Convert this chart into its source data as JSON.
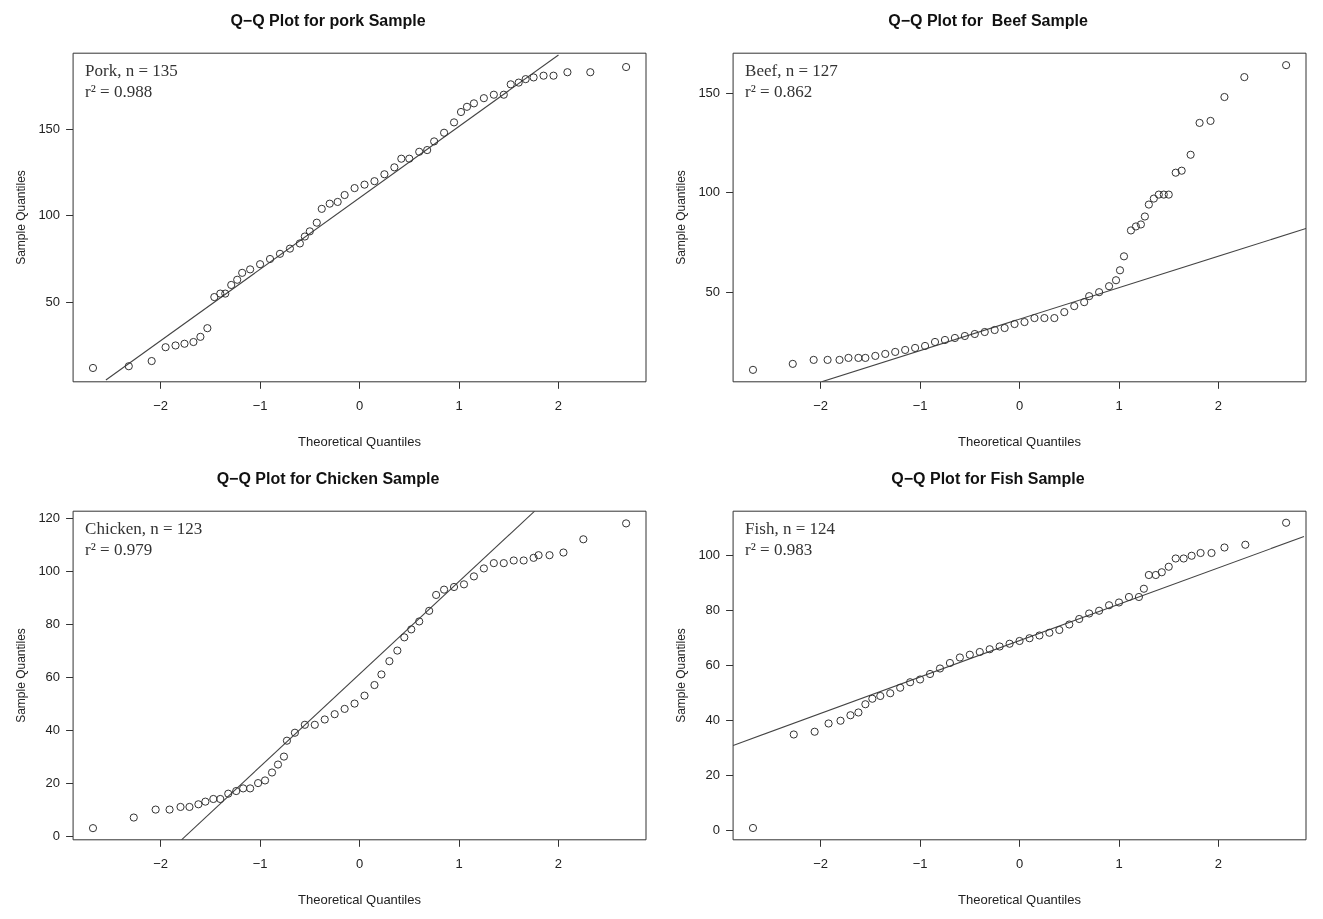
{
  "chart_data": [
    {
      "type": "scatter",
      "title": "Q−Q Plot for pork Sample",
      "xlabel": "Theoretical Quantiles",
      "ylabel": "Sample Quantiles",
      "xlim": [
        -2.88,
        2.88
      ],
      "ylim": [
        4,
        194
      ],
      "xticks": [
        -2,
        -1,
        0,
        1,
        2
      ],
      "yticks": [
        50,
        100,
        150
      ],
      "annotations": [
        "Pork, n = 135",
        "r² = 0.988"
      ],
      "series": [
        {
          "marker": "circle",
          "color": "#333333",
          "x": [
            -2.68,
            -2.32,
            -2.09,
            -1.95,
            -1.85,
            -1.76,
            -1.67,
            -1.6,
            -1.53,
            -1.46,
            -1.4,
            -1.35,
            -1.29,
            -1.23,
            -1.18,
            -1.1,
            -1.0,
            -0.9,
            -0.8,
            -0.7,
            -0.6,
            -0.55,
            -0.5,
            -0.43,
            -0.38,
            -0.3,
            -0.22,
            -0.15,
            -0.05,
            0.05,
            0.15,
            0.25,
            0.35,
            0.42,
            0.5,
            0.6,
            0.68,
            0.75,
            0.85,
            0.95,
            1.02,
            1.08,
            1.15,
            1.25,
            1.35,
            1.45,
            1.52,
            1.6,
            1.67,
            1.75,
            1.85,
            1.95,
            2.09,
            2.32,
            2.68
          ],
          "values": [
            12,
            13,
            16,
            24,
            25,
            26,
            27,
            30,
            35,
            53,
            55,
            55,
            60,
            63,
            67,
            69,
            72,
            75,
            78,
            81,
            84,
            88,
            91,
            96,
            104,
            107,
            108,
            112,
            116,
            118,
            120,
            124,
            128,
            133,
            133,
            137,
            138,
            143,
            148,
            154,
            160,
            163,
            165,
            168,
            170,
            170,
            176,
            177,
            179,
            180,
            181,
            181,
            183,
            183,
            186
          ]
        },
        {
          "type": "line",
          "marker": "none",
          "color": "#444444",
          "x": [
            -2.55,
            2.0
          ],
          "values": [
            5,
            193
          ]
        }
      ]
    },
    {
      "type": "scatter",
      "title": "Q−Q Plot for  Beef Sample",
      "xlabel": "Theoretical Quantiles",
      "ylabel": "Sample Quantiles",
      "xlim": [
        -2.88,
        2.88
      ],
      "ylim": [
        5,
        170
      ],
      "xticks": [
        -2,
        -1,
        0,
        1,
        2
      ],
      "yticks": [
        50,
        100,
        150
      ],
      "annotations": [
        "Beef, n = 127",
        "r² = 0.862"
      ],
      "series": [
        {
          "marker": "circle",
          "color": "#333333",
          "x": [
            -2.68,
            -2.28,
            -2.07,
            -1.93,
            -1.81,
            -1.72,
            -1.62,
            -1.55,
            -1.45,
            -1.35,
            -1.25,
            -1.15,
            -1.05,
            -0.95,
            -0.85,
            -0.75,
            -0.65,
            -0.55,
            -0.45,
            -0.35,
            -0.25,
            -0.15,
            -0.05,
            0.05,
            0.15,
            0.25,
            0.35,
            0.45,
            0.55,
            0.65,
            0.7,
            0.8,
            0.9,
            0.97,
            1.01,
            1.05,
            1.12,
            1.17,
            1.22,
            1.26,
            1.3,
            1.35,
            1.4,
            1.45,
            1.5,
            1.57,
            1.63,
            1.72,
            1.81,
            1.92,
            2.06,
            2.26,
            2.68
          ],
          "values": [
            11,
            14,
            16,
            16,
            16,
            17,
            17,
            17,
            18,
            19,
            20,
            21,
            22,
            23,
            25,
            26,
            27,
            28,
            29,
            30,
            31,
            32,
            34,
            35,
            37,
            37,
            37,
            40,
            43,
            45,
            48,
            50,
            53,
            56,
            61,
            68,
            81,
            83,
            84,
            88,
            94,
            97,
            99,
            99,
            99,
            110,
            111,
            119,
            135,
            136,
            148,
            158,
            164
          ]
        },
        {
          "type": "line",
          "marker": "none",
          "color": "#444444",
          "x": [
            -1.99,
            2.88
          ],
          "values": [
            5,
            82
          ]
        }
      ]
    },
    {
      "type": "scatter",
      "title": "Q−Q Plot for Chicken Sample",
      "xlabel": "Theoretical Quantiles",
      "ylabel": "Sample Quantiles",
      "xlim": [
        -2.88,
        2.88
      ],
      "ylim": [
        -1.4,
        122.6
      ],
      "xticks": [
        -2,
        -1,
        0,
        1,
        2
      ],
      "yticks": [
        0,
        20,
        40,
        60,
        80,
        100,
        120
      ],
      "annotations": [
        "Chicken, n = 123",
        "r² = 0.979"
      ],
      "series": [
        {
          "marker": "circle",
          "color": "#333333",
          "x": [
            -2.68,
            -2.27,
            -2.05,
            -1.91,
            -1.8,
            -1.71,
            -1.62,
            -1.55,
            -1.47,
            -1.4,
            -1.32,
            -1.24,
            -1.17,
            -1.1,
            -1.02,
            -0.95,
            -0.88,
            -0.82,
            -0.76,
            -0.73,
            -0.65,
            -0.55,
            -0.45,
            -0.35,
            -0.25,
            -0.15,
            -0.05,
            0.05,
            0.15,
            0.22,
            0.3,
            0.38,
            0.45,
            0.52,
            0.6,
            0.7,
            0.77,
            0.85,
            0.95,
            1.05,
            1.15,
            1.25,
            1.35,
            1.45,
            1.55,
            1.65,
            1.75,
            1.8,
            1.91,
            2.05,
            2.25,
            2.68
          ],
          "values": [
            3,
            7,
            10,
            10,
            11,
            11,
            12,
            13,
            14,
            14,
            16,
            17,
            18,
            18,
            20,
            21,
            24,
            27,
            30,
            36,
            39,
            42,
            42,
            44,
            46,
            48,
            50,
            53,
            57,
            61,
            66,
            70,
            75,
            78,
            81,
            85,
            91,
            93,
            94,
            95,
            98,
            101,
            103,
            103,
            104,
            104,
            105,
            106,
            106,
            107,
            112,
            118
          ]
        },
        {
          "type": "line",
          "marker": "none",
          "color": "#444444",
          "x": [
            -1.79,
            1.76
          ],
          "values": [
            -1.4,
            122.6
          ]
        }
      ]
    },
    {
      "type": "scatter",
      "title": "Q−Q Plot for Fish Sample",
      "xlabel": "Theoretical Quantiles",
      "ylabel": "Sample Quantiles",
      "xlim": [
        -2.88,
        2.88
      ],
      "ylim": [
        -3.3,
        116.2
      ],
      "xticks": [
        -2,
        -1,
        0,
        1,
        2
      ],
      "yticks": [
        0,
        20,
        40,
        60,
        80,
        100
      ],
      "annotations": [
        "Fish, n = 124",
        "r² = 0.983"
      ],
      "series": [
        {
          "marker": "circle",
          "color": "#333333",
          "x": [
            -2.68,
            -2.27,
            -2.06,
            -1.92,
            -1.8,
            -1.7,
            -1.62,
            -1.55,
            -1.48,
            -1.4,
            -1.3,
            -1.2,
            -1.1,
            -1.0,
            -0.9,
            -0.8,
            -0.7,
            -0.6,
            -0.5,
            -0.4,
            -0.3,
            -0.2,
            -0.1,
            0,
            0.1,
            0.2,
            0.3,
            0.4,
            0.5,
            0.6,
            0.7,
            0.8,
            0.9,
            1.0,
            1.1,
            1.2,
            1.25,
            1.3,
            1.37,
            1.43,
            1.5,
            1.57,
            1.65,
            1.73,
            1.82,
            1.93,
            2.06,
            2.27,
            2.68
          ],
          "values": [
            1,
            35,
            36,
            39,
            40,
            42,
            43,
            46,
            48,
            49,
            50,
            52,
            54,
            55,
            57,
            59,
            61,
            63,
            64,
            65,
            66,
            67,
            68,
            69,
            70,
            71,
            72,
            73,
            75,
            77,
            79,
            80,
            82,
            83,
            85,
            85,
            88,
            93,
            93,
            94,
            96,
            99,
            99,
            100,
            101,
            101,
            103,
            104,
            112
          ]
        },
        {
          "type": "line",
          "marker": "none",
          "color": "#444444",
          "x": [
            -2.88,
            2.86
          ],
          "values": [
            31,
            107
          ]
        }
      ]
    }
  ]
}
